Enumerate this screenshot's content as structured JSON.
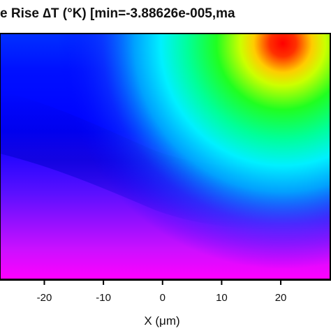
{
  "chart_data": {
    "type": "heatmap",
    "title": "e Rise ∆T (°K) [min=-3.88626e-005,ma",
    "xlabel": "X (μm)",
    "ylabel": "",
    "x_ticks": [
      -20,
      -10,
      0,
      10,
      20
    ],
    "x_tick_labels": [
      "-20",
      "-10",
      "0",
      "10",
      "20"
    ],
    "xlim": [
      -27.5,
      28.5
    ],
    "colormap": [
      "#ff00ff",
      "#0000ff",
      "#00ffff",
      "#00ff00",
      "#ffff00",
      "#ff0000"
    ],
    "hotspot_x": 20,
    "grid": false,
    "legend": "none"
  }
}
